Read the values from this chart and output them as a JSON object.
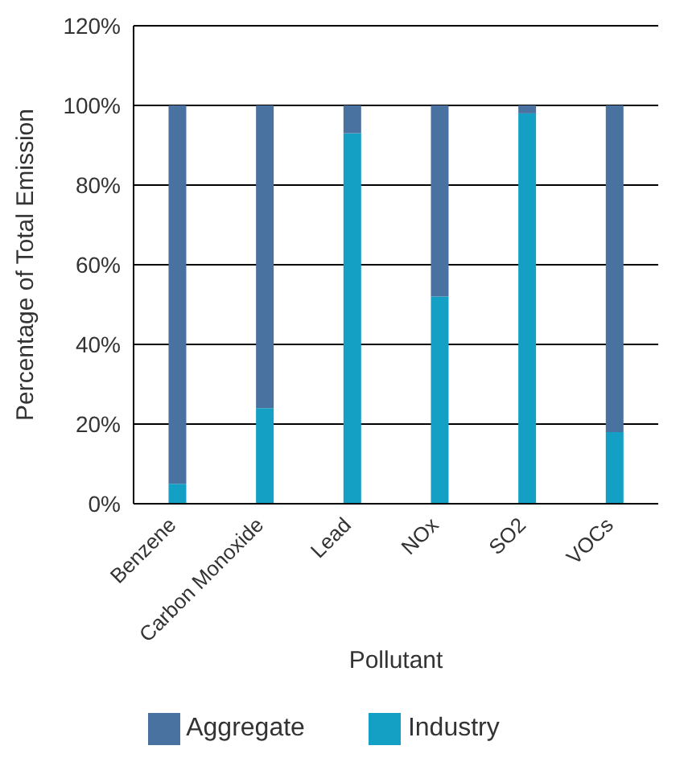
{
  "chart_data": {
    "type": "bar",
    "stacked": true,
    "xlabel": "Pollutant",
    "ylabel": "Percentage of Total Emission",
    "categories": [
      "Benzene",
      "Carbon Monoxide",
      "Lead",
      "NOx",
      "SO2",
      "VOCs"
    ],
    "series": [
      {
        "name": "Industry",
        "color": "#13a0c4",
        "values": [
          5,
          24,
          93,
          52,
          98,
          18
        ]
      },
      {
        "name": "Aggregate",
        "color": "#4a72a0",
        "values": [
          95,
          76,
          7,
          48,
          2,
          82
        ]
      }
    ],
    "ylim": [
      0,
      120
    ],
    "yticks": [
      {
        "value": 0,
        "label": "0%"
      },
      {
        "value": 20,
        "label": "20%"
      },
      {
        "value": 40,
        "label": "40%"
      },
      {
        "value": 60,
        "label": "60%"
      },
      {
        "value": 80,
        "label": "80%"
      },
      {
        "value": 100,
        "label": "100%"
      },
      {
        "value": 120,
        "label": "120%"
      }
    ],
    "grid": "y",
    "legend": "bottom"
  }
}
